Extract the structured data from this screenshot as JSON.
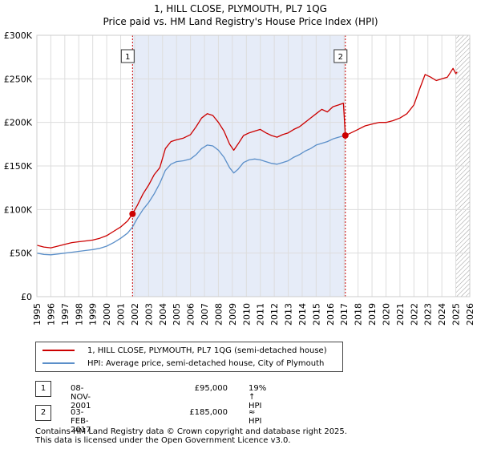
{
  "title_line1": "1, HILL CLOSE, PLYMOUTH, PL7 1QG",
  "title_line2": "Price paid vs. HM Land Registry's House Price Index (HPI)",
  "legend": {
    "red_label": "1, HILL CLOSE, PLYMOUTH, PL7 1QG (semi-detached house)",
    "blue_label": "HPI: Average price, semi-detached house, City of Plymouth"
  },
  "transactions": [
    {
      "num": "1",
      "date": "08-NOV-2001",
      "price": "£95,000",
      "hpi": "19% ↑ HPI"
    },
    {
      "num": "2",
      "date": "03-FEB-2017",
      "price": "£185,000",
      "hpi": "≈ HPI"
    }
  ],
  "footer_line1": "Contains HM Land Registry data © Crown copyright and database right 2025.",
  "footer_line2": "This data is licensed under the Open Government Licence v3.0.",
  "colors": {
    "red": "#cc0000",
    "blue": "#5b8fc9",
    "shade": "#e6ecf8",
    "grid": "#dddddd"
  },
  "chart_data": {
    "type": "line",
    "title": "Price paid vs. HM Land Registry's House Price Index (HPI)",
    "xlim": [
      1995,
      2026
    ],
    "ylim": [
      0,
      300000
    ],
    "x_ticks": [
      "1995",
      "1996",
      "1997",
      "1998",
      "1999",
      "2000",
      "2001",
      "2002",
      "2003",
      "2004",
      "2005",
      "2006",
      "2007",
      "2008",
      "2009",
      "2010",
      "2011",
      "2012",
      "2013",
      "2014",
      "2015",
      "2016",
      "2017",
      "2018",
      "2019",
      "2020",
      "2021",
      "2022",
      "2023",
      "2024",
      "2025",
      "2026"
    ],
    "y_ticks": [
      {
        "value": 0,
        "label": "£0"
      },
      {
        "value": 50000,
        "label": "£50K"
      },
      {
        "value": 100000,
        "label": "£100K"
      },
      {
        "value": 150000,
        "label": "£150K"
      },
      {
        "value": 200000,
        "label": "£200K"
      },
      {
        "value": 250000,
        "label": "£250K"
      },
      {
        "value": 300000,
        "label": "£300K"
      }
    ],
    "markers": [
      {
        "label": "1",
        "x": 2001.85,
        "y": 95000
      },
      {
        "label": "2",
        "x": 2017.09,
        "y": 185000
      }
    ],
    "shaded_range": [
      2001.85,
      2017.09
    ],
    "hatched_from": 2025.0,
    "series": [
      {
        "name": "1, HILL CLOSE, PLYMOUTH, PL7 1QG (semi-detached house)",
        "color": "#cc0000",
        "x": [
          1995.0,
          1995.5,
          1996.0,
          1996.5,
          1997.0,
          1997.5,
          1998.0,
          1998.5,
          1999.0,
          1999.5,
          2000.0,
          2000.5,
          2001.0,
          2001.5,
          2001.85,
          2002.2,
          2002.6,
          2003.0,
          2003.4,
          2003.8,
          2004.2,
          2004.6,
          2005.0,
          2005.5,
          2006.0,
          2006.4,
          2006.8,
          2007.2,
          2007.6,
          2008.0,
          2008.4,
          2008.8,
          2009.1,
          2009.4,
          2009.8,
          2010.2,
          2010.6,
          2011.0,
          2011.4,
          2011.8,
          2012.2,
          2012.6,
          2013.0,
          2013.4,
          2013.8,
          2014.2,
          2014.6,
          2015.0,
          2015.4,
          2015.8,
          2016.2,
          2016.6,
          2016.95,
          2017.09,
          2017.5,
          2018.0,
          2018.5,
          2019.0,
          2019.5,
          2020.0,
          2020.5,
          2021.0,
          2021.5,
          2022.0,
          2022.4,
          2022.8,
          2023.2,
          2023.6,
          2024.0,
          2024.4,
          2024.8,
          2025.0,
          2025.1
        ],
        "values": [
          59000,
          57000,
          56000,
          58000,
          60000,
          62000,
          63000,
          64000,
          65000,
          67000,
          70000,
          75000,
          80000,
          87000,
          95000,
          105000,
          118000,
          128000,
          140000,
          148000,
          170000,
          178000,
          180000,
          182000,
          186000,
          195000,
          205000,
          210000,
          208000,
          200000,
          190000,
          175000,
          168000,
          175000,
          185000,
          188000,
          190000,
          192000,
          188000,
          185000,
          183000,
          186000,
          188000,
          192000,
          195000,
          200000,
          205000,
          210000,
          215000,
          212000,
          218000,
          220000,
          222000,
          185000,
          188000,
          192000,
          196000,
          198000,
          200000,
          200000,
          202000,
          205000,
          210000,
          220000,
          238000,
          255000,
          252000,
          248000,
          250000,
          252000,
          262000,
          256000,
          258000
        ]
      },
      {
        "name": "HPI: Average price, semi-detached house, City of Plymouth",
        "color": "#5b8fc9",
        "x": [
          1995.0,
          1995.5,
          1996.0,
          1996.5,
          1997.0,
          1997.5,
          1998.0,
          1998.5,
          1999.0,
          1999.5,
          2000.0,
          2000.5,
          2001.0,
          2001.5,
          2001.85,
          2002.2,
          2002.6,
          2003.0,
          2003.4,
          2003.8,
          2004.2,
          2004.6,
          2005.0,
          2005.5,
          2006.0,
          2006.4,
          2006.8,
          2007.2,
          2007.6,
          2008.0,
          2008.4,
          2008.8,
          2009.1,
          2009.4,
          2009.8,
          2010.2,
          2010.6,
          2011.0,
          2011.4,
          2011.8,
          2012.2,
          2012.6,
          2013.0,
          2013.4,
          2013.8,
          2014.2,
          2014.6,
          2015.0,
          2015.4,
          2015.8,
          2016.2,
          2016.6,
          2017.09
        ],
        "values": [
          50000,
          48500,
          48000,
          49000,
          50000,
          51000,
          52000,
          53000,
          54000,
          55500,
          58000,
          62000,
          67000,
          73000,
          80000,
          90000,
          100000,
          108000,
          118000,
          130000,
          145000,
          152000,
          155000,
          156000,
          158000,
          163000,
          170000,
          174000,
          173000,
          168000,
          160000,
          148000,
          142000,
          146000,
          154000,
          157000,
          158000,
          157000,
          155000,
          153000,
          152000,
          154000,
          156000,
          160000,
          163000,
          167000,
          170000,
          174000,
          176000,
          178000,
          181000,
          183000,
          185000
        ]
      }
    ]
  }
}
